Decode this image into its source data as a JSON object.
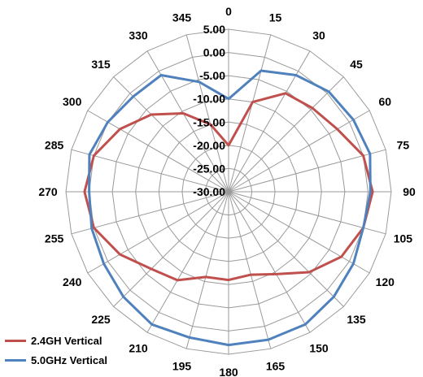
{
  "chart_data": {
    "type": "polar-line",
    "angles": [
      0,
      15,
      30,
      45,
      60,
      75,
      90,
      105,
      120,
      135,
      150,
      165,
      180,
      195,
      210,
      225,
      240,
      255,
      270,
      285,
      300,
      315,
      330,
      345
    ],
    "angle_labels": [
      "0",
      "15",
      "30",
      "45",
      "60",
      "75",
      "90",
      "105",
      "120",
      "135",
      "150",
      "165",
      "180",
      "195",
      "210",
      "225",
      "240",
      "255",
      "270",
      "285",
      "300",
      "315",
      "330",
      "345"
    ],
    "r_ticks": [
      -30,
      -25,
      -20,
      -15,
      -10,
      -5,
      0,
      5
    ],
    "r_tick_labels": [
      "-30.00",
      "-25.00",
      "-20.00",
      "-15.00",
      "-10.00",
      "-5.00",
      "0.00",
      "5.00"
    ],
    "rlim": [
      -30,
      5
    ],
    "grid": true,
    "legend_position": "bottom-left",
    "series": [
      {
        "name": "2.4GH Vertical",
        "color": "#c0504d",
        "values": [
          -20,
          -10,
          -5.5,
          -4.5,
          -3,
          0,
          1,
          0,
          -2,
          -5.5,
          -9.5,
          -11.5,
          -11,
          -11,
          -8,
          -6.5,
          -3,
          0,
          1,
          0,
          -3,
          -6.5,
          -10.5,
          -15
        ]
      },
      {
        "name": "5.0GHz Vertical",
        "color": "#4f81bd",
        "values": [
          -10,
          -3,
          -1,
          0.5,
          1,
          1.5,
          0.5,
          0,
          1,
          2,
          3,
          3,
          3,
          2.5,
          3,
          2,
          1,
          0.5,
          0,
          1,
          0,
          -1,
          -1,
          -5.5
        ]
      }
    ]
  }
}
